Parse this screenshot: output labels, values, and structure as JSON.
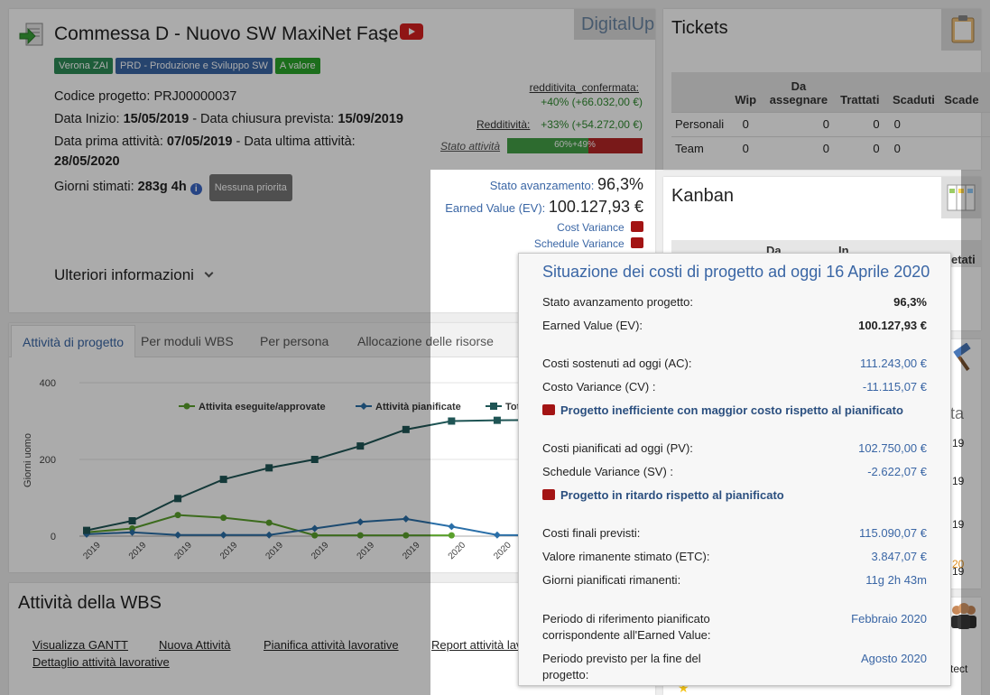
{
  "project": {
    "title": "Commessa D - Nuovo SW MaxiNet Fase 2",
    "brand": "DigitalUp",
    "tags": [
      {
        "label": "Verona ZAI",
        "color": "#2e8b57"
      },
      {
        "label": "PRD - Produzione e Sviluppo SW",
        "color": "#3a66a5"
      },
      {
        "label": "A valore",
        "color": "#2aa52a"
      }
    ],
    "codice_label": "Codice progetto:",
    "codice_value": "PRJ00000037",
    "data_inizio_label": "Data Inizio:",
    "data_inizio_value": "15/05/2019",
    "chiusura_label": "- Data chiusura prevista:",
    "chiusura_value": "15/09/2019",
    "prima_label": "Data prima attività:",
    "prima_value": "07/05/2019",
    "ultima_label": "- Data ultima attività:",
    "ultima_value": "28/05/2020",
    "giorni_label": "Giorni stimati:",
    "giorni_value": "283g 4h",
    "priority": "Nessuna priorita",
    "redd_conf_label": "redditivita_confermata:",
    "redd_conf_value": "+40% (+66.032,00 €)",
    "redd_label": "Redditività:",
    "redd_value": "+33% (+54.272,00 €)",
    "stato_label": "Stato attività",
    "stato_bar_text": "60%+49%",
    "stato_green_fraction": 0.6,
    "avanz_label": "Stato avanzamento:",
    "avanz_value": "96,3%",
    "ev_label": "Earned Value (EV):",
    "ev_value": "100.127,93 €",
    "cv_label": "Cost Variance",
    "sv_label": "Schedule Variance",
    "more_info": "Ulteriori informazioni"
  },
  "tickets": {
    "title": "Tickets",
    "headers": [
      "",
      "Wip",
      "Da assegnare",
      "Trattati",
      "Scaduti",
      "Scade"
    ],
    "rows": [
      {
        "name": "Personali",
        "values": [
          "0",
          "0",
          "0",
          "0"
        ]
      },
      {
        "name": "Team",
        "values": [
          "0",
          "0",
          "0",
          "0"
        ]
      }
    ]
  },
  "kanban": {
    "title": "Kanban",
    "headers": [
      "Da",
      "In",
      "etati"
    ]
  },
  "right_partial": {
    "text_ta": "ta",
    "dates": [
      "19",
      "19",
      "19",
      "19"
    ],
    "orange": "20",
    "tect": "tect"
  },
  "tabs": [
    "Attività di progetto",
    "Per moduli WBS",
    "Per persona",
    "Allocazione delle risorse"
  ],
  "chart_data": {
    "type": "line",
    "ylabel": "Giorni uomo",
    "ylim": [
      0,
      400
    ],
    "yticks": [
      0,
      200,
      400
    ],
    "x": [
      "2019",
      "2019",
      "2019",
      "2019",
      "2019",
      "2019",
      "2019",
      "2019",
      "2020",
      "2020",
      "2020",
      "2020"
    ],
    "series": [
      {
        "name": "Attivita eseguite/approvate",
        "color": "#5aa02c",
        "values": [
          10,
          20,
          55,
          48,
          35,
          2,
          2,
          2,
          2,
          null,
          null,
          null
        ]
      },
      {
        "name": "Attività pianificate",
        "color": "#2a6fa8",
        "values": [
          5,
          10,
          3,
          3,
          3,
          20,
          37,
          45,
          25,
          3,
          2,
          3
        ]
      },
      {
        "name": "Tota",
        "color": "#1f5555",
        "values": [
          15,
          40,
          98,
          148,
          178,
          200,
          235,
          278,
          300,
          302,
          303,
          305
        ]
      }
    ]
  },
  "wbs": {
    "title": "Attività della WBS",
    "links": [
      "Visualizza GANTT",
      "Nuova Attività",
      "Pianifica attività lavorative",
      "Report attività lav",
      "Dettaglio attività lavorative"
    ]
  },
  "tooltip": {
    "title": "Situazione dei costi di progetto ad oggi 16 Aprile 2020",
    "rows": [
      {
        "label": "Stato avanzamento progetto:",
        "value": "96,3%"
      },
      {
        "label": "Earned Value (EV):",
        "value": "100.127,93 €"
      },
      {
        "label": "Costi sostenuti ad oggi (AC):",
        "value": "111.243,00 €"
      },
      {
        "label": "Costo Variance (CV) :",
        "value": "-11.115,07 €"
      },
      {
        "label": "Costi pianificati ad oggi (PV):",
        "value": "102.750,00 €"
      },
      {
        "label": "Schedule Variance (SV) :",
        "value": "-2.622,07 €"
      },
      {
        "label": "Costi finali previsti:",
        "value": "115.090,07 €"
      },
      {
        "label": "Valore rimanente stimato (ETC):",
        "value": "3.847,07 €"
      },
      {
        "label": "Giorni pianificati rimanenti:",
        "value": "11g 2h 43m"
      }
    ],
    "warn_cost": "Progetto inefficiente con maggior costo rispetto al pianificato",
    "warn_time": "Progetto in ritardo rispetto al pianificato",
    "period_ref_label_1": "Periodo di riferimento pianificato",
    "period_ref_label_2": "corrispondente all'Earned Value:",
    "period_ref_value": "Febbraio 2020",
    "period_end_label_1": "Periodo previsto per la fine del",
    "period_end_label_2": "progetto:",
    "period_end_value": "Agosto 2020"
  }
}
